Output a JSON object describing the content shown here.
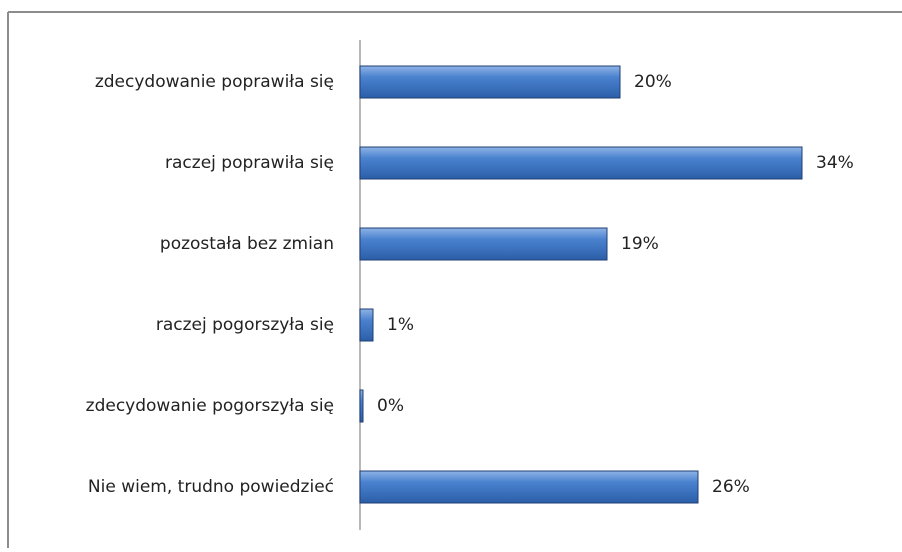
{
  "chart_data": {
    "type": "bar",
    "orientation": "horizontal",
    "categories": [
      "zdecydowanie poprawiła się",
      "raczej poprawiła się",
      "pozostała bez zmian",
      "raczej pogorszyła się",
      "zdecydowanie pogorszyła się",
      "Nie wiem, trudno powiedzieć"
    ],
    "values": [
      20,
      34,
      19,
      1,
      0,
      26
    ],
    "value_labels": [
      "20%",
      "34%",
      "19%",
      "1%",
      "0%",
      "26%"
    ],
    "color": "#3f78c6"
  }
}
